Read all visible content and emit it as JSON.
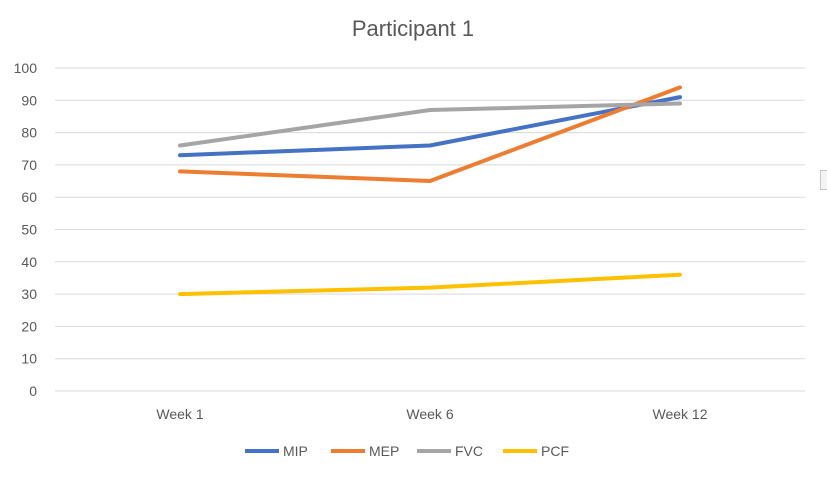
{
  "chart_data": {
    "type": "line",
    "title": "Participant 1",
    "categories": [
      "Week 1",
      "Week 6",
      "Week 12"
    ],
    "ylim": [
      0,
      100
    ],
    "yticks": [
      0,
      10,
      20,
      30,
      40,
      50,
      60,
      70,
      80,
      90,
      100
    ],
    "grid": true,
    "legend_position": "bottom",
    "series": [
      {
        "name": "MIP",
        "color": "#4472c4",
        "values": [
          73,
          76,
          91
        ]
      },
      {
        "name": "MEP",
        "color": "#ed7d31",
        "values": [
          68,
          65,
          94
        ]
      },
      {
        "name": "FVC",
        "color": "#a5a5a5",
        "values": [
          76,
          87,
          89
        ]
      },
      {
        "name": "PCF",
        "color": "#ffc000",
        "values": [
          30,
          32,
          36
        ]
      }
    ]
  }
}
